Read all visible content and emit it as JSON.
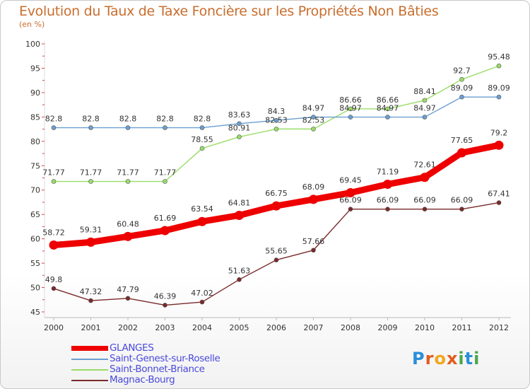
{
  "title": "Evolution du Taux de Taxe Foncière sur les Propriétés Non Bâties",
  "subtitle": "(en %)",
  "logo": {
    "letters": [
      "P",
      "r",
      "o",
      "x",
      "i",
      "t",
      "i"
    ],
    "colors": [
      "#2a8fd8",
      "#e35b1c",
      "#f0a820",
      "#e35b1c",
      "#4aa84a",
      "#2a8fd8",
      "#4aa84a"
    ]
  },
  "chart_data": {
    "type": "line",
    "x": [
      "2000",
      "2001",
      "2002",
      "2003",
      "2004",
      "2005",
      "2006",
      "2007",
      "2008",
      "2009",
      "2010",
      "2011",
      "2012"
    ],
    "ylim": [
      45,
      100
    ],
    "yticks": [
      45,
      50,
      55,
      60,
      65,
      70,
      75,
      80,
      85,
      90,
      95,
      100
    ],
    "grid": false,
    "legend": "bottom-left",
    "series": [
      {
        "name": "GLANGES",
        "color": "#ee0000",
        "values": [
          58.72,
          59.31,
          60.48,
          61.69,
          63.54,
          64.81,
          66.75,
          68.09,
          69.45,
          71.19,
          72.61,
          77.65,
          79.2
        ],
        "labels": [
          "58.72",
          "59.31",
          "60.48",
          "61.69",
          "63.54",
          "64.81",
          "66.75",
          "68.09",
          "69.45",
          "71.19",
          "72.61",
          "77.65",
          "79.2"
        ]
      },
      {
        "name": "Saint-Genest-sur-Roselle",
        "color": "#6a9fd0",
        "values": [
          82.8,
          82.8,
          82.8,
          82.8,
          82.8,
          83.63,
          84.3,
          84.97,
          84.97,
          84.97,
          84.97,
          89.09,
          89.09
        ],
        "labels": [
          "82.8",
          "82.8",
          "82.8",
          "82.8",
          "82.8",
          "83.63",
          "84.3",
          "84.97",
          "84.97",
          "84.97",
          "84.97",
          "89.09",
          "89.09"
        ]
      },
      {
        "name": "Saint-Bonnet-Briance",
        "color": "#99dd66",
        "values": [
          71.77,
          71.77,
          71.77,
          71.77,
          78.55,
          80.91,
          82.53,
          82.53,
          86.66,
          86.66,
          88.41,
          92.7,
          95.48
        ],
        "labels": [
          "71.77",
          "71.77",
          "71.77",
          "71.77",
          "78.55",
          "80.91",
          "82.53",
          "82.53",
          "86.66",
          "86.66",
          "88.41",
          "92.7",
          "95.48"
        ]
      },
      {
        "name": "Magnac-Bourg",
        "color": "#7a2a2a",
        "values": [
          49.8,
          47.32,
          47.79,
          46.39,
          47.02,
          51.63,
          55.65,
          57.66,
          66.09,
          66.09,
          66.09,
          66.09,
          67.41
        ],
        "labels": [
          "49.8",
          "47.32",
          "47.79",
          "46.39",
          "47.02",
          "51.63",
          "55.65",
          "57.66",
          "66.09",
          "66.09",
          "66.09",
          "66.09",
          "67.41"
        ]
      }
    ]
  }
}
